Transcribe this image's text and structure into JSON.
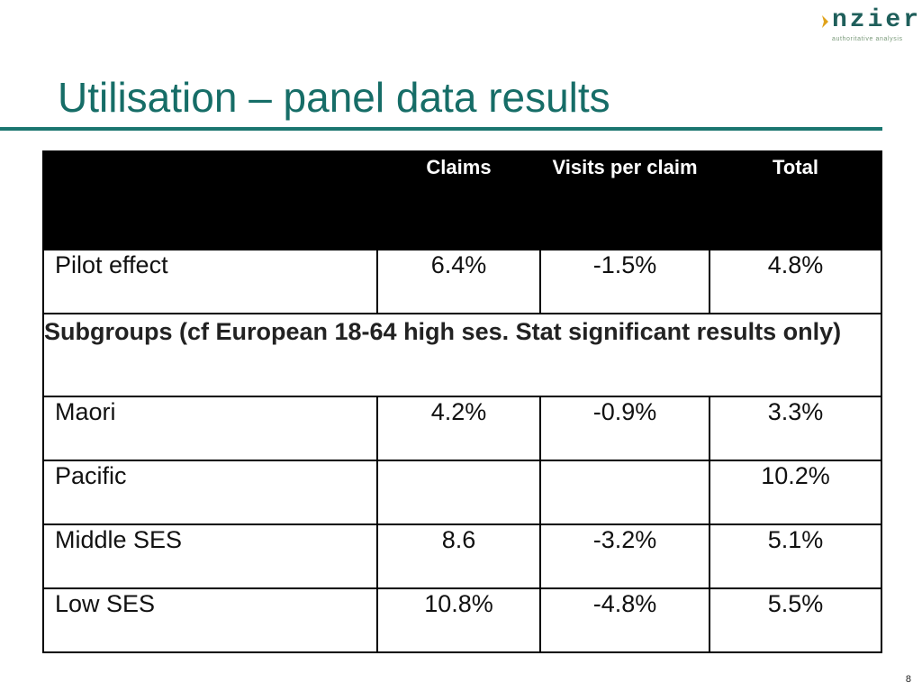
{
  "logo": {
    "word": "nzier",
    "tagline": "authoritative analysis",
    "colors": {
      "word": "#1f5f5b",
      "arrow": "#e0a21a",
      "tagline": "#7a9a7a"
    }
  },
  "title": "Utilisation – panel data results",
  "table": {
    "columns": [
      "",
      "Claims",
      "Visits per claim",
      "Total"
    ],
    "pilot_row": {
      "label": "Pilot effect",
      "claims": "6.4%",
      "visits": "-1.5%",
      "total": "4.8%"
    },
    "subgroups_heading": "Subgroups (cf European 18-64 high ses. Stat significant results only)",
    "rows": [
      {
        "label": "Maori",
        "claims": "4.2%",
        "visits": "-0.9%",
        "total": "3.3%"
      },
      {
        "label": "Pacific",
        "claims": "",
        "visits": "",
        "total": "10.2%"
      },
      {
        "label": "Middle SES",
        "claims": "8.6",
        "visits": "-3.2%",
        "total": "5.1%"
      },
      {
        "label": "Low SES",
        "claims": "10.8%",
        "visits": "-4.8%",
        "total": "5.5%"
      }
    ]
  },
  "page_number": "8",
  "colors": {
    "title": "#166d67",
    "rule": "#1a7670",
    "header_bg": "#000000",
    "header_text": "#ffffff"
  }
}
